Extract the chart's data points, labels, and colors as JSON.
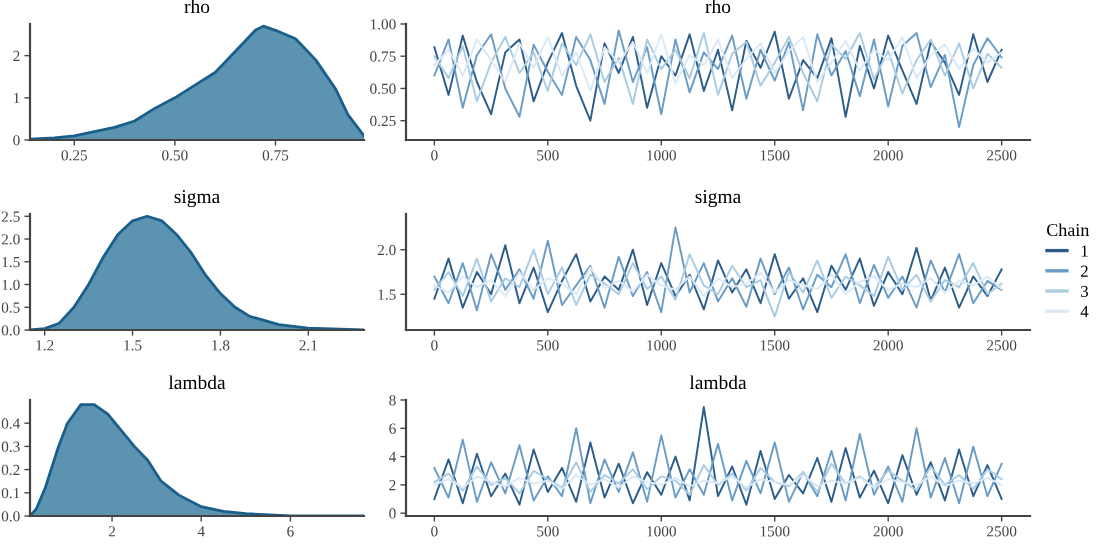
{
  "chart_data": [
    {
      "type": "area",
      "title": "rho",
      "x": [
        0.14,
        0.2,
        0.25,
        0.3,
        0.35,
        0.4,
        0.45,
        0.5,
        0.55,
        0.6,
        0.65,
        0.7,
        0.72,
        0.75,
        0.8,
        0.85,
        0.9,
        0.93,
        0.97
      ],
      "series": [
        {
          "color": "#5b93b0",
          "values": [
            0.02,
            0.05,
            0.1,
            0.2,
            0.3,
            0.45,
            0.75,
            1.0,
            1.3,
            1.6,
            2.1,
            2.6,
            2.7,
            2.6,
            2.4,
            1.9,
            1.2,
            0.6,
            0.1
          ]
        }
      ],
      "xlim": [
        0.14,
        0.97
      ],
      "xticks": [
        {
          "value": 0.25,
          "label": "0.25"
        },
        {
          "value": 0.5,
          "label": "0.50"
        },
        {
          "value": 0.75,
          "label": "0.75"
        }
      ],
      "ylim": [
        0,
        2.75
      ],
      "yticks": [
        0,
        1,
        2
      ]
    },
    {
      "type": "line",
      "title": "rho",
      "x": [
        0,
        62.5,
        125,
        187.5,
        250,
        312.5,
        375,
        437.5,
        500,
        562.5,
        625,
        687.5,
        750,
        812.5,
        875,
        937.5,
        1000,
        1062.5,
        1125,
        1187.5,
        1250,
        1312.5,
        1375,
        1437.5,
        1500,
        1562.5,
        1625,
        1687.5,
        1750,
        1812.5,
        1875,
        1937.5,
        2000,
        2062.5,
        2125,
        2187.5,
        2250,
        2312.5,
        2375,
        2437.5,
        2500
      ],
      "series": [
        {
          "color": "#2c5d8a",
          "values": [
            0.82,
            0.45,
            0.91,
            0.55,
            0.3,
            0.78,
            0.88,
            0.4,
            0.7,
            0.93,
            0.52,
            0.25,
            0.85,
            0.62,
            0.9,
            0.35,
            0.75,
            0.6,
            0.92,
            0.48,
            0.8,
            0.33,
            0.87,
            0.66,
            0.94,
            0.42,
            0.72,
            0.58,
            0.89,
            0.28,
            0.83,
            0.5,
            0.91,
            0.64,
            0.38,
            0.86,
            0.7,
            0.45,
            0.92,
            0.55,
            0.8
          ]
        },
        {
          "color": "#6a9cc6",
          "values": [
            0.6,
            0.88,
            0.35,
            0.76,
            0.92,
            0.5,
            0.28,
            0.84,
            0.63,
            0.45,
            0.9,
            0.72,
            0.38,
            0.95,
            0.55,
            0.82,
            0.3,
            0.88,
            0.47,
            0.78,
            0.65,
            0.91,
            0.42,
            0.8,
            0.56,
            0.86,
            0.33,
            0.92,
            0.6,
            0.79,
            0.44,
            0.88,
            0.36,
            0.83,
            0.93,
            0.51,
            0.76,
            0.2,
            0.68,
            0.89,
            0.74
          ]
        },
        {
          "color": "#a9cce3",
          "values": [
            0.75,
            0.58,
            0.83,
            0.4,
            0.7,
            0.9,
            0.62,
            0.78,
            0.48,
            0.85,
            0.68,
            0.92,
            0.55,
            0.74,
            0.38,
            0.88,
            0.65,
            0.8,
            0.58,
            0.93,
            0.45,
            0.77,
            0.86,
            0.52,
            0.7,
            0.9,
            0.62,
            0.4,
            0.84,
            0.73,
            0.93,
            0.57,
            0.79,
            0.46,
            0.72,
            0.88,
            0.6,
            0.85,
            0.5,
            0.77,
            0.66
          ]
        },
        {
          "color": "#dbe9f6",
          "values": [
            0.68,
            0.8,
            0.6,
            0.88,
            0.72,
            0.55,
            0.85,
            0.66,
            0.9,
            0.6,
            0.78,
            0.48,
            0.82,
            0.7,
            0.86,
            0.62,
            0.92,
            0.54,
            0.76,
            0.68,
            0.88,
            0.58,
            0.73,
            0.85,
            0.62,
            0.79,
            0.9,
            0.55,
            0.7,
            0.87,
            0.64,
            0.8,
            0.72,
            0.9,
            0.58,
            0.76,
            0.84,
            0.65,
            0.81,
            0.7,
            0.78
          ]
        }
      ],
      "xlim": [
        -125,
        2625
      ],
      "xticks": [
        0,
        500,
        1000,
        1500,
        2000,
        2500
      ],
      "ylim": [
        0.1,
        1.0
      ],
      "yticks": [
        {
          "value": 0.25,
          "label": "0.25"
        },
        {
          "value": 0.5,
          "label": "0.50"
        },
        {
          "value": 0.75,
          "label": "0.75"
        },
        {
          "value": 1.0,
          "label": "1.00"
        }
      ]
    },
    {
      "type": "area",
      "title": "sigma",
      "x": [
        1.15,
        1.2,
        1.25,
        1.3,
        1.35,
        1.4,
        1.45,
        1.5,
        1.55,
        1.6,
        1.65,
        1.7,
        1.75,
        1.8,
        1.85,
        1.9,
        2.0,
        2.1,
        2.29
      ],
      "series": [
        {
          "color": "#5b93b0",
          "values": [
            0,
            0.03,
            0.15,
            0.5,
            1.0,
            1.6,
            2.1,
            2.4,
            2.5,
            2.4,
            2.1,
            1.7,
            1.2,
            0.8,
            0.5,
            0.3,
            0.12,
            0.04,
            0
          ]
        }
      ],
      "xlim": [
        1.15,
        2.29
      ],
      "xticks": [
        1.2,
        1.5,
        1.8,
        2.1
      ],
      "ylim": [
        0,
        2.55
      ],
      "yticks": [
        {
          "value": 0,
          "label": "0.0"
        },
        0.5,
        {
          "value": 1,
          "label": "1.0"
        },
        1.5,
        {
          "value": 2,
          "label": "2.0"
        },
        2.5
      ]
    },
    {
      "type": "line",
      "title": "sigma",
      "legend": "right",
      "legend_title": "Chain",
      "x": [
        0,
        62.5,
        125,
        187.5,
        250,
        312.5,
        375,
        437.5,
        500,
        562.5,
        625,
        687.5,
        750,
        812.5,
        875,
        937.5,
        1000,
        1062.5,
        1125,
        1187.5,
        1250,
        1312.5,
        1375,
        1437.5,
        1500,
        1562.5,
        1625,
        1687.5,
        1750,
        1812.5,
        1875,
        1937.5,
        2000,
        2062.5,
        2125,
        2187.5,
        2250,
        2312.5,
        2375,
        2437.5,
        2500
      ],
      "series": [
        {
          "name": "1",
          "color": "#2c5d8a",
          "values": [
            1.45,
            1.9,
            1.35,
            1.75,
            1.5,
            2.05,
            1.4,
            1.8,
            1.3,
            1.65,
            1.95,
            1.42,
            1.7,
            1.55,
            2.0,
            1.38,
            1.85,
            1.48,
            1.72,
            1.33,
            1.88,
            1.52,
            1.78,
            1.4,
            1.95,
            1.45,
            1.68,
            1.3,
            1.82,
            1.55,
            1.9,
            1.37,
            1.75,
            1.5,
            2.02,
            1.43,
            1.8,
            1.35,
            1.7,
            1.48,
            1.78
          ]
        },
        {
          "name": "2",
          "color": "#6a9cc6",
          "values": [
            1.7,
            1.4,
            1.85,
            1.32,
            1.95,
            1.55,
            1.78,
            1.45,
            2.1,
            1.38,
            1.6,
            1.82,
            1.35,
            1.92,
            1.48,
            1.75,
            1.3,
            2.25,
            1.52,
            1.85,
            1.42,
            1.68,
            1.36,
            1.9,
            1.5,
            1.8,
            1.33,
            1.72,
            1.58,
            1.95,
            1.4,
            1.83,
            1.46,
            1.7,
            1.35,
            1.88,
            1.52,
            1.95,
            1.4,
            1.65,
            1.55
          ]
        },
        {
          "name": "3",
          "color": "#a9cce3",
          "values": [
            1.55,
            1.75,
            1.48,
            1.9,
            1.42,
            1.68,
            1.58,
            2.0,
            1.5,
            1.8,
            1.38,
            1.72,
            1.62,
            1.5,
            1.85,
            1.56,
            1.7,
            1.44,
            1.95,
            1.6,
            1.5,
            1.82,
            1.58,
            1.66,
            1.25,
            1.75,
            1.52,
            1.88,
            1.46,
            1.7,
            1.6,
            1.48,
            1.92,
            1.55,
            1.72,
            1.42,
            1.66,
            1.58,
            1.85,
            1.5,
            1.62
          ]
        },
        {
          "name": "4",
          "color": "#dbe9f6",
          "values": [
            1.6,
            1.52,
            1.7,
            1.58,
            1.66,
            1.48,
            1.75,
            1.55,
            1.68,
            1.62,
            1.5,
            1.8,
            1.57,
            1.65,
            1.53,
            1.72,
            1.6,
            1.55,
            1.7,
            1.48,
            1.68,
            1.58,
            1.62,
            1.74,
            1.52,
            1.66,
            1.6,
            1.56,
            1.72,
            1.5,
            1.64,
            1.7,
            1.55,
            1.62,
            1.58,
            1.68,
            1.52,
            1.65,
            1.6,
            1.7,
            1.56
          ]
        }
      ],
      "xlim": [
        -125,
        2625
      ],
      "xticks": [
        0,
        500,
        1000,
        1500,
        2000,
        2500
      ],
      "ylim": [
        1.1,
        2.4
      ],
      "yticks": [
        1.5,
        {
          "value": 2,
          "label": "2.0"
        }
      ]
    },
    {
      "type": "area",
      "title": "lambda",
      "x": [
        0.16,
        0.3,
        0.5,
        0.8,
        1.0,
        1.3,
        1.6,
        1.9,
        2.2,
        2.5,
        2.8,
        3.1,
        3.5,
        4.0,
        4.5,
        5.0,
        6.0,
        7.65
      ],
      "series": [
        {
          "color": "#5b93b0",
          "values": [
            0,
            0.03,
            0.12,
            0.3,
            0.4,
            0.48,
            0.48,
            0.44,
            0.37,
            0.3,
            0.24,
            0.15,
            0.09,
            0.04,
            0.02,
            0.01,
            0,
            0
          ]
        }
      ],
      "xlim": [
        0.16,
        7.65
      ],
      "xticks": [
        2,
        4,
        6
      ],
      "ylim": [
        0,
        0.5
      ],
      "yticks": [
        {
          "value": 0,
          "label": "0.0"
        },
        0.1,
        0.2,
        0.3,
        0.4
      ]
    },
    {
      "type": "line",
      "title": "lambda",
      "x": [
        0,
        62.5,
        125,
        187.5,
        250,
        312.5,
        375,
        437.5,
        500,
        562.5,
        625,
        687.5,
        750,
        812.5,
        875,
        937.5,
        1000,
        1062.5,
        1125,
        1187.5,
        1250,
        1312.5,
        1375,
        1437.5,
        1500,
        1562.5,
        1625,
        1687.5,
        1750,
        1812.5,
        1875,
        1937.5,
        2000,
        2062.5,
        2125,
        2187.5,
        2250,
        2312.5,
        2375,
        2437.5,
        2500
      ],
      "series": [
        {
          "color": "#2c5d8a",
          "values": [
            1.0,
            3.8,
            0.7,
            4.2,
            1.2,
            2.8,
            0.6,
            4.5,
            1.5,
            3.2,
            0.8,
            5.0,
            1.1,
            3.5,
            0.7,
            2.9,
            1.3,
            4.0,
            0.9,
            7.5,
            1.2,
            3.3,
            0.6,
            4.4,
            1.0,
            2.7,
            1.4,
            3.9,
            0.8,
            4.6,
            1.1,
            3.0,
            0.7,
            4.1,
            1.3,
            3.6,
            0.9,
            4.5,
            1.2,
            3.4,
            1.0
          ]
        },
        {
          "color": "#6a9cc6",
          "values": [
            3.2,
            1.1,
            5.2,
            0.8,
            3.6,
            1.4,
            4.8,
            0.9,
            2.6,
            1.2,
            6.0,
            0.7,
            3.8,
            1.5,
            4.3,
            0.8,
            5.5,
            1.1,
            3.1,
            1.3,
            4.9,
            0.9,
            3.7,
            1.4,
            5.0,
            0.8,
            2.9,
            1.2,
            4.4,
            0.9,
            5.6,
            1.3,
            3.3,
            0.8,
            6.0,
            1.1,
            3.9,
            0.7,
            4.7,
            1.2,
            3.5
          ]
        },
        {
          "color": "#a9cce3",
          "values": [
            2.2,
            2.8,
            1.6,
            3.3,
            2.0,
            2.5,
            1.4,
            3.0,
            2.4,
            1.8,
            3.6,
            1.5,
            2.7,
            2.1,
            3.1,
            1.7,
            2.6,
            2.3,
            1.3,
            3.4,
            2.0,
            2.8,
            1.6,
            3.2,
            2.2,
            1.9,
            2.9,
            1.5,
            3.5,
            2.1,
            2.6,
            1.8,
            3.0,
            2.3,
            1.6,
            3.3,
            2.0,
            2.7,
            1.7,
            3.1,
            2.4
          ]
        },
        {
          "color": "#dbe9f6",
          "values": [
            2.0,
            2.4,
            1.8,
            2.6,
            2.2,
            1.9,
            2.5,
            2.1,
            2.3,
            1.7,
            2.7,
            2.0,
            2.4,
            1.8,
            2.6,
            2.2,
            2.0,
            2.5,
            1.9,
            2.3,
            2.1,
            2.6,
            1.8,
            2.4,
            2.2,
            2.0,
            2.7,
            1.9,
            2.3,
            2.1,
            2.5,
            1.8,
            2.4,
            2.2,
            2.0,
            2.6,
            1.9,
            2.3,
            2.1,
            2.5,
            2.0
          ]
        }
      ],
      "xlim": [
        -125,
        2625
      ],
      "xticks": [
        0,
        500,
        1000,
        1500,
        2000,
        2500
      ],
      "ylim": [
        -0.2,
        8
      ],
      "yticks": [
        0,
        2,
        4,
        6,
        8
      ]
    }
  ]
}
